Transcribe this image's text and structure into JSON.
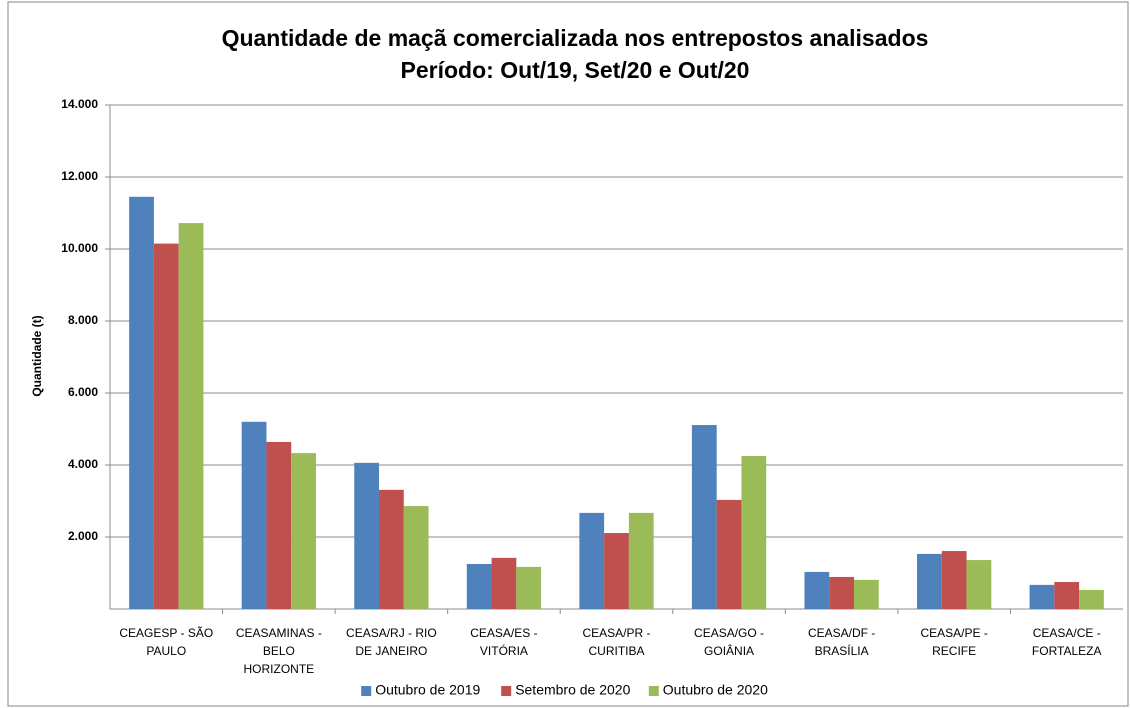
{
  "chart_data": {
    "type": "bar",
    "title": "Quantidade de maçã comercializada nos entrepostos analisados",
    "subtitle": "Período: Out/19, Set/20 e Out/20",
    "y_label": "Quantidade (t)",
    "categories": [
      "CEAGESP - SÃO PAULO",
      "CEASAMINAS - BELO HORIZONTE",
      "CEASA/RJ - RIO DE JANEIRO",
      "CEASA/ES - VITÓRIA",
      "CEASA/PR - CURITIBA",
      "CEASA/GO - GOIÂNIA",
      "CEASA/DF - BRASÍLIA",
      "CEASA/PE - RECIFE",
      "CEASA/CE - FORTALEZA"
    ],
    "series": [
      {
        "name": "Outubro de 2019",
        "color": "#4f81bd",
        "values": [
          11450,
          5200,
          4060,
          1250,
          2670,
          5110,
          1030,
          1530,
          670
        ]
      },
      {
        "name": "Setembro de 2020",
        "color": "#c0504d",
        "values": [
          10150,
          4640,
          3310,
          1420,
          2110,
          3030,
          890,
          1610,
          750
        ]
      },
      {
        "name": "Outubro de 2020",
        "color": "#9bbb59",
        "values": [
          10720,
          4330,
          2860,
          1170,
          2670,
          4250,
          810,
          1360,
          530
        ]
      }
    ],
    "ylim": [
      0,
      14000
    ],
    "yticks": [
      {
        "value": 2000,
        "label": "2.000"
      },
      {
        "value": 4000,
        "label": "4.000"
      },
      {
        "value": 6000,
        "label": "6.000"
      },
      {
        "value": 8000,
        "label": "8.000"
      },
      {
        "value": 10000,
        "label": "10.000"
      },
      {
        "value": 12000,
        "label": "12.000"
      },
      {
        "value": 14000,
        "label": "14.000"
      }
    ],
    "grid": true,
    "legend": "bottom"
  }
}
